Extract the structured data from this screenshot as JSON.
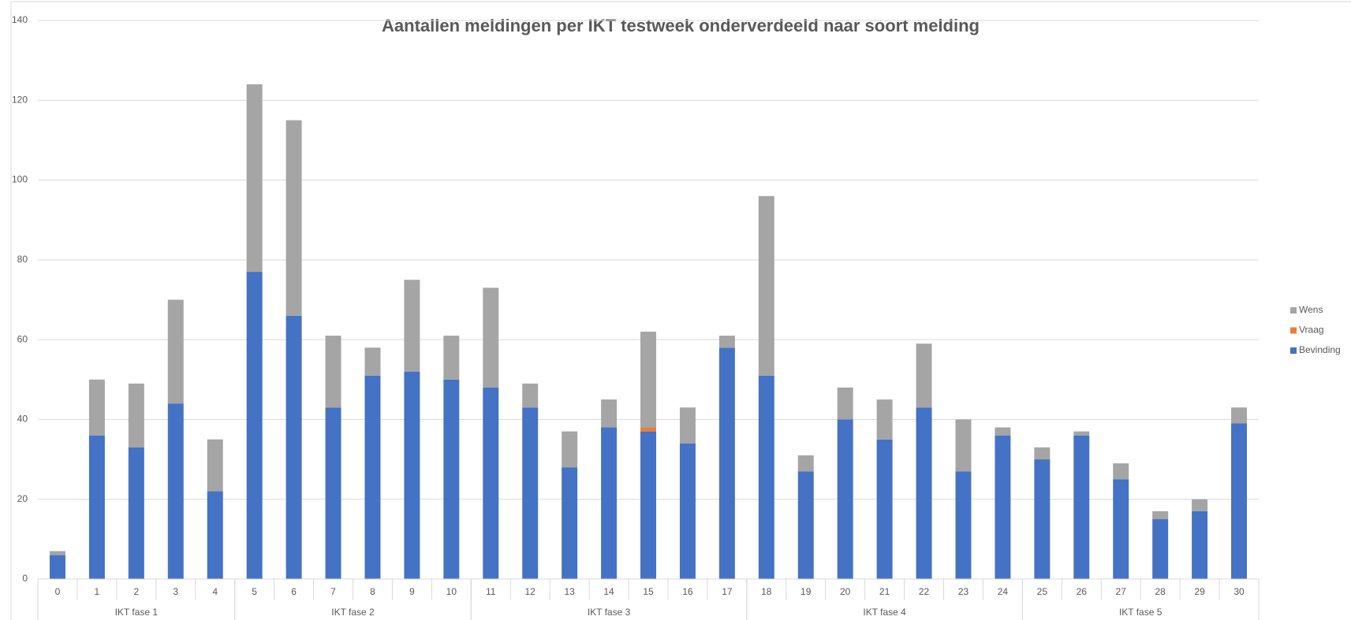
{
  "chart_data": {
    "type": "stacked_bar",
    "title": "Aantallen meldingen per IKT testweek onderverdeeld naar soort melding",
    "categories": [
      "0",
      "1",
      "2",
      "3",
      "4",
      "5",
      "6",
      "7",
      "8",
      "9",
      "10",
      "11",
      "12",
      "13",
      "14",
      "15",
      "16",
      "17",
      "18",
      "19",
      "20",
      "21",
      "22",
      "23",
      "24",
      "25",
      "26",
      "27",
      "28",
      "29",
      "30"
    ],
    "groups": [
      {
        "label": "IKT fase 1",
        "span": 5
      },
      {
        "label": "IKT fase 2",
        "span": 6
      },
      {
        "label": "IKT fase 3",
        "span": 7
      },
      {
        "label": "IKT fase 4",
        "span": 7
      },
      {
        "label": "IKT fase 5",
        "span": 6
      }
    ],
    "series": [
      {
        "name": "Bevinding",
        "color": "#4472c4",
        "values": [
          6,
          36,
          33,
          44,
          22,
          77,
          66,
          43,
          51,
          52,
          50,
          48,
          43,
          28,
          38,
          37,
          34,
          58,
          51,
          27,
          40,
          35,
          43,
          27,
          36,
          30,
          36,
          25,
          15,
          17,
          39
        ]
      },
      {
        "name": "Vraag",
        "color": "#ed7d31",
        "values": [
          0,
          0,
          0,
          0,
          0,
          0,
          0,
          0,
          0,
          0,
          0,
          0,
          0,
          0,
          0,
          1,
          0,
          0,
          0,
          0,
          0,
          0,
          0,
          0,
          0,
          0,
          0,
          0,
          0,
          0,
          0
        ]
      },
      {
        "name": "Wens",
        "color": "#a5a5a5",
        "values": [
          1,
          14,
          16,
          26,
          13,
          47,
          49,
          18,
          7,
          23,
          11,
          25,
          6,
          9,
          7,
          24,
          9,
          3,
          45,
          4,
          8,
          10,
          16,
          13,
          2,
          3,
          1,
          4,
          2,
          3,
          4
        ]
      }
    ],
    "ylim": [
      0,
      140
    ],
    "yticks": [
      0,
      20,
      40,
      60,
      80,
      100,
      120,
      140
    ],
    "grid": true,
    "legend": "right"
  }
}
